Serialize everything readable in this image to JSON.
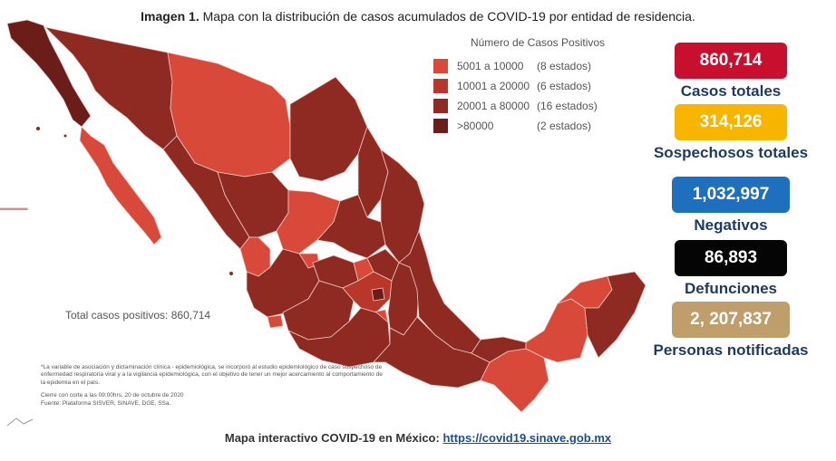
{
  "header": {
    "label": "Imagen 1.",
    "text": "Mapa con la distribución de casos acumulados de COVID-19 por entidad de residencia."
  },
  "legend": {
    "title": "Número de Casos Positivos",
    "items": [
      {
        "range": "5001 a  10000",
        "count": "(8 estados)",
        "color": "#d9493a"
      },
      {
        "range": "10001 a  20000",
        "count": "(6 estados)",
        "color": "#b8362a"
      },
      {
        "range": "20001 a  80000",
        "count": "(16 estados)",
        "color": "#8e2a22"
      },
      {
        "range": ">80000",
        "count": "(2 estados)",
        "color": "#6b1e19"
      }
    ]
  },
  "map": {
    "total_label": "Total casos positivos: 860,714",
    "colors": {
      "base": "#8e2a22",
      "mid": "#b8362a",
      "light": "#d9493a",
      "dark": "#6b1e19",
      "border": "#f3c9c2"
    }
  },
  "stats": [
    {
      "value": "860,714",
      "label": "Casos totales",
      "color": "#c8102e",
      "text_color": "#ffffff"
    },
    {
      "value": "314,126",
      "label": "Sospechosos totales",
      "color": "#f7b500",
      "text_color": "#ffffff"
    },
    {
      "value": "1,032,997",
      "label": "Negativos",
      "color": "#1f6fbf",
      "text_color": "#ffffff"
    },
    {
      "value": "86,893",
      "label": "Defunciones",
      "color": "#050505",
      "text_color": "#ffffff"
    },
    {
      "value": "2, 207,837",
      "label": "Personas notificadas",
      "color": "#bf9e6b",
      "text_color": "#ffffff"
    }
  ],
  "footnote": {
    "line1": "*La variable de asociación y dictaminación clínica - epidemiológica, se incorporó al estudio epidemiológico de caso sospechoso de enfermedad respiratoria viral y a la vigilancia epidemiológica, con el objetivo de tener un mejor acercamiento al comportamiento de la epidemia en el país.",
    "line2": "Cierre con corte a las 09:00hrs, 20 de octubre de 2020",
    "line3": "Fuente: Plataforma SISVER, SINAVE, DGE, SSa."
  },
  "bottom": {
    "text": "Mapa interactivo COVID-19 en México:",
    "link": "https://covid19.sinave.gob.mx"
  }
}
